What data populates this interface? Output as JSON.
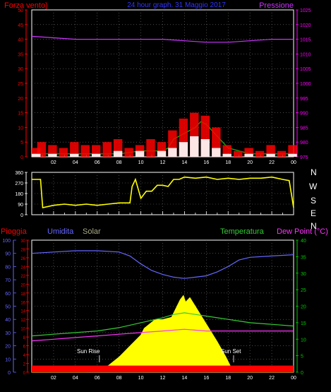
{
  "top_panel": {
    "title": "24 hour graph. 31 Maggio 2017",
    "left_label": "Forza vento)",
    "right_label": "Pressione"
  },
  "mid_panel": {
    "compass_labels": [
      "N",
      "W",
      "S",
      "E",
      "N"
    ]
  },
  "bottom_panel": {
    "labels": {
      "pioggia": "Pioggia",
      "umidita": "Umidita",
      "solar": "Solar",
      "temperatura": "Temperatura",
      "dewpoint": "Dew Point (°C)"
    },
    "annotations": {
      "sunrise": "Sun Rise",
      "sunset": "Sun Set"
    }
  },
  "colors": {
    "wind": "#ff0000",
    "wind_avg": "#00cc00",
    "wind_min": "#ffffff",
    "pressure": "#cc33ff",
    "direction": "#ffff00",
    "humidity": "#6666ff",
    "temperature": "#33cc33",
    "dewpoint": "#ff33ff",
    "solar": "#ffff00",
    "rain": "#ff0000",
    "axis_left": "#ff0000",
    "axis_right": "#ff00ff",
    "axis_humidity": "#6666ff",
    "axis_temp": "#00cc00"
  },
  "chart_data": [
    {
      "type": "line",
      "x_ticks": [
        "02",
        "04",
        "06",
        "08",
        "10",
        "12",
        "14",
        "16",
        "18",
        "20",
        "22",
        "00"
      ],
      "y_left": {
        "range": [
          0,
          50
        ],
        "ticks": [
          "0",
          "5",
          "10",
          "15",
          "20",
          "25",
          "30",
          "35",
          "40",
          "45",
          "50"
        ]
      },
      "y_right": {
        "range": [
          975,
          1025
        ],
        "ticks": [
          "975",
          "980",
          "985",
          "990",
          "995",
          "1000",
          "1005",
          "1010",
          "1015",
          "1020",
          "1025"
        ]
      },
      "series": [
        {
          "key": "pressure",
          "axis": "right",
          "x": [
            0,
            2,
            4,
            6,
            8,
            10,
            12,
            14,
            16,
            18,
            20,
            22,
            24
          ],
          "values": [
            1016,
            1015.5,
            1015,
            1015,
            1015,
            1015,
            1015,
            1014.5,
            1014,
            1014,
            1014.5,
            1015,
            1015
          ]
        },
        {
          "key": "wind_avg",
          "axis": "left",
          "x": [
            0,
            2,
            4,
            6,
            8,
            10,
            12,
            12.5,
            13,
            14,
            15,
            15.5,
            16,
            17,
            18,
            20,
            22,
            24
          ],
          "values": [
            1,
            1,
            1,
            1,
            1,
            2,
            2,
            3,
            6,
            8,
            10,
            12,
            11,
            7,
            3,
            1,
            1,
            1
          ]
        },
        {
          "key": "wind",
          "axis": "left",
          "kind": "bars",
          "x": [
            0,
            1,
            2,
            3,
            4,
            5,
            6,
            7,
            8,
            9,
            10,
            11,
            12,
            13,
            14,
            15,
            16,
            17,
            18,
            19,
            20,
            21,
            22,
            23,
            24
          ],
          "values": [
            3,
            5,
            4,
            3,
            5,
            4,
            4,
            5,
            6,
            3,
            4,
            6,
            5,
            9,
            13,
            15,
            14,
            10,
            4,
            2,
            3,
            2,
            4,
            2,
            4
          ]
        },
        {
          "key": "wind_min",
          "axis": "left",
          "kind": "bars",
          "x": [
            0,
            2,
            4,
            6,
            8,
            10,
            12,
            13,
            14,
            15,
            16,
            17,
            18,
            20,
            22,
            24
          ],
          "values": [
            1,
            1,
            1,
            1,
            2,
            2,
            2,
            3,
            5,
            7,
            6,
            3,
            1,
            1,
            1,
            1
          ]
        }
      ]
    },
    {
      "type": "line",
      "y": {
        "range": [
          0,
          360
        ],
        "ticks": [
          "0",
          "90",
          "180",
          "270",
          "360"
        ]
      },
      "series": [
        {
          "key": "direction",
          "x": [
            0,
            0.8,
            1,
            2,
            3,
            4,
            5,
            6,
            7,
            8,
            9,
            9.2,
            9.5,
            10,
            10.5,
            11,
            11.5,
            12,
            12.5,
            13,
            13.5,
            14,
            15,
            16,
            17,
            18,
            19,
            20,
            21,
            22,
            23,
            23.6,
            24
          ],
          "values": [
            300,
            300,
            60,
            80,
            90,
            80,
            90,
            80,
            90,
            100,
            100,
            240,
            300,
            140,
            200,
            200,
            250,
            250,
            240,
            300,
            300,
            320,
            310,
            320,
            300,
            310,
            300,
            310,
            310,
            320,
            300,
            290,
            60
          ]
        }
      ]
    },
    {
      "type": "line",
      "y_left_scales": [
        {
          "key": "humidity",
          "range": [
            0,
            100
          ],
          "ticks": [
            "0",
            "10",
            "20",
            "30",
            "40",
            "50",
            "60",
            "70",
            "80",
            "90",
            "100"
          ]
        },
        {
          "key": "rain",
          "range": [
            0,
            30
          ],
          "ticks": [
            "0",
            "2",
            "4",
            "6",
            "8",
            "10",
            "12",
            "14",
            "16",
            "18",
            "20",
            "22",
            "24",
            "26",
            "28",
            "30"
          ]
        }
      ],
      "y_right": {
        "range": [
          0,
          40
        ],
        "ticks": [
          "0",
          "5",
          "10",
          "15",
          "20",
          "25",
          "30",
          "35",
          "40"
        ]
      },
      "series": [
        {
          "key": "humidity",
          "axis": "humidity",
          "x": [
            0,
            2,
            4,
            6,
            8,
            9,
            10,
            11,
            12,
            13,
            14,
            15,
            16,
            17,
            18,
            19,
            20,
            22,
            24
          ],
          "values": [
            90,
            91,
            92,
            92,
            91,
            88,
            82,
            77,
            74,
            72,
            71,
            72,
            73,
            76,
            80,
            85,
            87,
            88,
            89
          ]
        },
        {
          "key": "temperature",
          "axis": "temp",
          "x": [
            0,
            2,
            4,
            6,
            8,
            10,
            12,
            13,
            14,
            15,
            16,
            17,
            18,
            19,
            20,
            22,
            24
          ],
          "values": [
            11,
            11.5,
            12,
            12.5,
            13.5,
            15,
            16.5,
            17.5,
            18,
            17.5,
            17,
            16.5,
            16,
            15.5,
            15,
            14.5,
            14
          ]
        },
        {
          "key": "dewpoint",
          "axis": "temp",
          "x": [
            0,
            2,
            4,
            6,
            8,
            10,
            12,
            14,
            16,
            18,
            20,
            22,
            24
          ],
          "values": [
            9.5,
            10,
            10.5,
            11,
            11.5,
            12,
            12.5,
            13,
            12.5,
            12.5,
            12.5,
            12.5,
            12.5
          ]
        },
        {
          "key": "solar",
          "axis": "rain",
          "kind": "area",
          "x": [
            0,
            5,
            6,
            7,
            8,
            9,
            10,
            10.3,
            10.8,
            11.3,
            12,
            12.8,
            13.3,
            13.6,
            13.9,
            14.1,
            14.5,
            15,
            16,
            17,
            17.8,
            18.5,
            24
          ],
          "values": [
            0,
            0,
            0.8,
            1.5,
            3.5,
            6,
            8.5,
            10,
            11,
            12,
            12,
            12.5,
            15,
            16.5,
            17.5,
            16,
            17,
            15,
            11,
            7,
            3.5,
            0,
            0
          ]
        },
        {
          "key": "rain",
          "axis": "rain",
          "kind": "bar",
          "x": [
            0,
            24
          ],
          "values": [
            1.5,
            1.5
          ]
        }
      ]
    }
  ]
}
